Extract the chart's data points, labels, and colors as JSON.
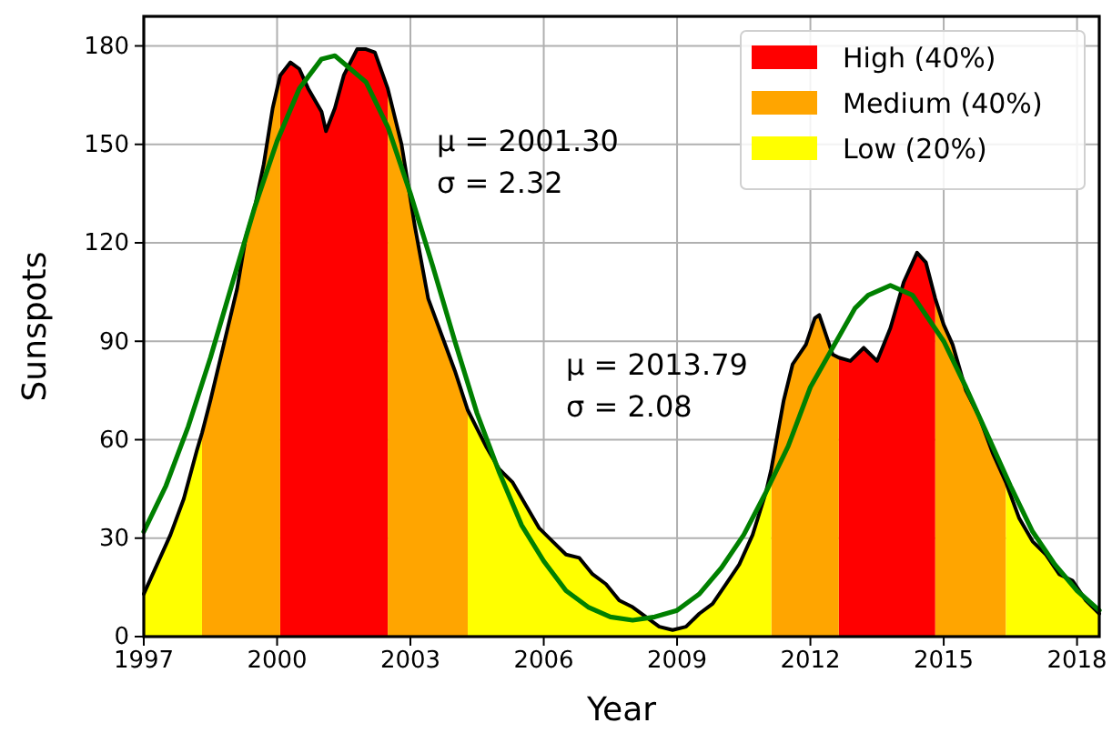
{
  "chart_data": {
    "type": "area",
    "xlabel": "Year",
    "ylabel": "Sunspots",
    "xlim": [
      1997,
      2018.5
    ],
    "ylim": [
      0,
      189
    ],
    "xticks": [
      1997,
      2000,
      2003,
      2006,
      2009,
      2012,
      2015,
      2018
    ],
    "yticks": [
      0,
      30,
      60,
      90,
      120,
      150,
      180
    ],
    "grid": true,
    "legend": "top right",
    "annotations": [
      "μ = 2001.30",
      "σ = 2.32",
      "μ = 2013.79",
      "σ = 2.08"
    ],
    "series": [
      {
        "name": "High (40%)",
        "color": "#ff0000",
        "x": [
          2000.07,
          2000.3,
          2000.5,
          2000.7,
          2001.0,
          2001.1,
          2001.3,
          2001.5,
          2001.8,
          2002.0,
          2002.2,
          2002.49,
          2008,
          2012.64,
          2012.9,
          2013.2,
          2013.5,
          2013.8,
          2014.1,
          2014.4,
          2014.6,
          2014.81
        ],
        "values": [
          171,
          175,
          173,
          167,
          160,
          154,
          161,
          171,
          179,
          179,
          178,
          167,
          null,
          85,
          84,
          88,
          84,
          94,
          108,
          117,
          114,
          103
        ]
      },
      {
        "name": "Medium (40%)",
        "color": "#ffa500",
        "x": [
          1998.31,
          1998.5,
          1998.8,
          1999.1,
          1999.3,
          1999.5,
          1999.7,
          1999.9,
          2000.07,
          2001,
          2002.49,
          2002.8,
          2003.1,
          2003.4,
          2003.7,
          2004.0,
          2004.29,
          2008,
          2011.12,
          2011.4,
          2011.6,
          2011.9,
          2012.1,
          2012.2,
          2012.5,
          2012.64,
          2013.5,
          2014.81,
          2015.0,
          2015.2,
          2015.5,
          2015.8,
          2016.1,
          2016.4
        ],
        "values": [
          62,
          72,
          89,
          106,
          122,
          131,
          144,
          161,
          171,
          null,
          167,
          150,
          125,
          103,
          92,
          81,
          69,
          null,
          51,
          72,
          83,
          89,
          97,
          98,
          86,
          85,
          null,
          103,
          95,
          89,
          75,
          67,
          56,
          47
        ]
      },
      {
        "name": "Low (20%)",
        "color": "#ffff00",
        "x": [
          1997.0,
          1997.3,
          1997.6,
          1997.9,
          1998.2,
          1998.31,
          2001,
          2004.29,
          2004.7,
          2005.0,
          2005.3,
          2005.6,
          2005.9,
          2006.2,
          2006.5,
          2006.8,
          2007.1,
          2007.4,
          2007.7,
          2008.0,
          2008.3,
          2008.6,
          2008.9,
          2009.2,
          2009.5,
          2009.8,
          2010.1,
          2010.4,
          2010.7,
          2011.0,
          2011.12,
          2014,
          2016.4,
          2016.7,
          2017.0,
          2017.3,
          2017.6,
          2017.9,
          2018.2,
          2018.5
        ],
        "values": [
          13,
          22,
          31,
          42,
          57,
          62,
          null,
          69,
          58,
          51,
          47,
          40,
          33,
          29,
          25,
          24,
          19,
          16,
          11,
          9,
          6,
          3,
          2,
          3,
          7,
          10,
          16,
          22,
          31,
          44,
          51,
          null,
          47,
          36,
          29,
          25,
          19,
          17,
          11,
          7
        ]
      },
      {
        "type": "line",
        "color": "#000000",
        "x": [
          1997.0,
          1997.3,
          1997.6,
          1997.9,
          1998.2,
          1998.31,
          1998.5,
          1998.8,
          1999.1,
          1999.3,
          1999.5,
          1999.7,
          1999.9,
          2000.07,
          2000.3,
          2000.5,
          2000.7,
          2001.0,
          2001.1,
          2001.3,
          2001.5,
          2001.8,
          2002.0,
          2002.2,
          2002.49,
          2002.8,
          2003.1,
          2003.4,
          2003.7,
          2004.0,
          2004.29,
          2004.7,
          2005.0,
          2005.3,
          2005.6,
          2005.9,
          2006.2,
          2006.5,
          2006.8,
          2007.1,
          2007.4,
          2007.7,
          2008.0,
          2008.3,
          2008.6,
          2008.9,
          2009.2,
          2009.5,
          2009.8,
          2010.1,
          2010.4,
          2010.7,
          2011.0,
          2011.12,
          2011.4,
          2011.6,
          2011.9,
          2012.1,
          2012.2,
          2012.5,
          2012.64,
          2012.9,
          2013.2,
          2013.5,
          2013.8,
          2014.1,
          2014.4,
          2014.6,
          2014.81,
          2015.0,
          2015.2,
          2015.5,
          2015.8,
          2016.1,
          2016.4,
          2016.7,
          2017.0,
          2017.3,
          2017.6,
          2017.9,
          2018.2,
          2018.5
        ],
        "values": [
          13,
          22,
          31,
          42,
          57,
          62,
          72,
          89,
          106,
          122,
          131,
          144,
          161,
          171,
          175,
          173,
          167,
          160,
          154,
          161,
          171,
          179,
          179,
          178,
          167,
          150,
          125,
          103,
          92,
          81,
          69,
          58,
          51,
          47,
          40,
          33,
          29,
          25,
          24,
          19,
          16,
          11,
          9,
          6,
          3,
          2,
          3,
          7,
          10,
          16,
          22,
          31,
          44,
          51,
          72,
          83,
          89,
          97,
          98,
          86,
          85,
          84,
          88,
          84,
          94,
          108,
          117,
          114,
          103,
          95,
          89,
          75,
          67,
          56,
          47,
          36,
          29,
          25,
          19,
          17,
          11,
          7
        ]
      },
      {
        "type": "line",
        "color": "#008000",
        "x": [
          1997,
          1997.5,
          1998,
          1998.5,
          1999,
          1999.5,
          2000,
          2000.5,
          2001,
          2001.3,
          2002,
          2002.5,
          2003,
          2003.5,
          2004,
          2004.5,
          2005,
          2005.5,
          2006,
          2006.5,
          2007,
          2007.5,
          2008,
          2008.5,
          2009,
          2009.5,
          2010,
          2010.5,
          2011,
          2011.5,
          2012,
          2012.5,
          2013,
          2013.3,
          2013.8,
          2014.3,
          2015,
          2015.5,
          2016,
          2016.5,
          2017,
          2017.5,
          2018,
          2018.5
        ],
        "values": [
          32,
          46,
          64,
          85,
          108,
          131,
          151,
          167,
          176,
          177,
          169,
          155,
          135,
          113,
          90,
          68,
          50,
          34,
          23,
          14,
          9,
          6,
          5,
          6,
          8,
          13,
          21,
          31,
          44,
          58,
          76,
          88,
          100,
          104,
          107,
          104,
          90,
          76,
          61,
          46,
          32,
          22,
          14,
          8
        ]
      }
    ]
  }
}
